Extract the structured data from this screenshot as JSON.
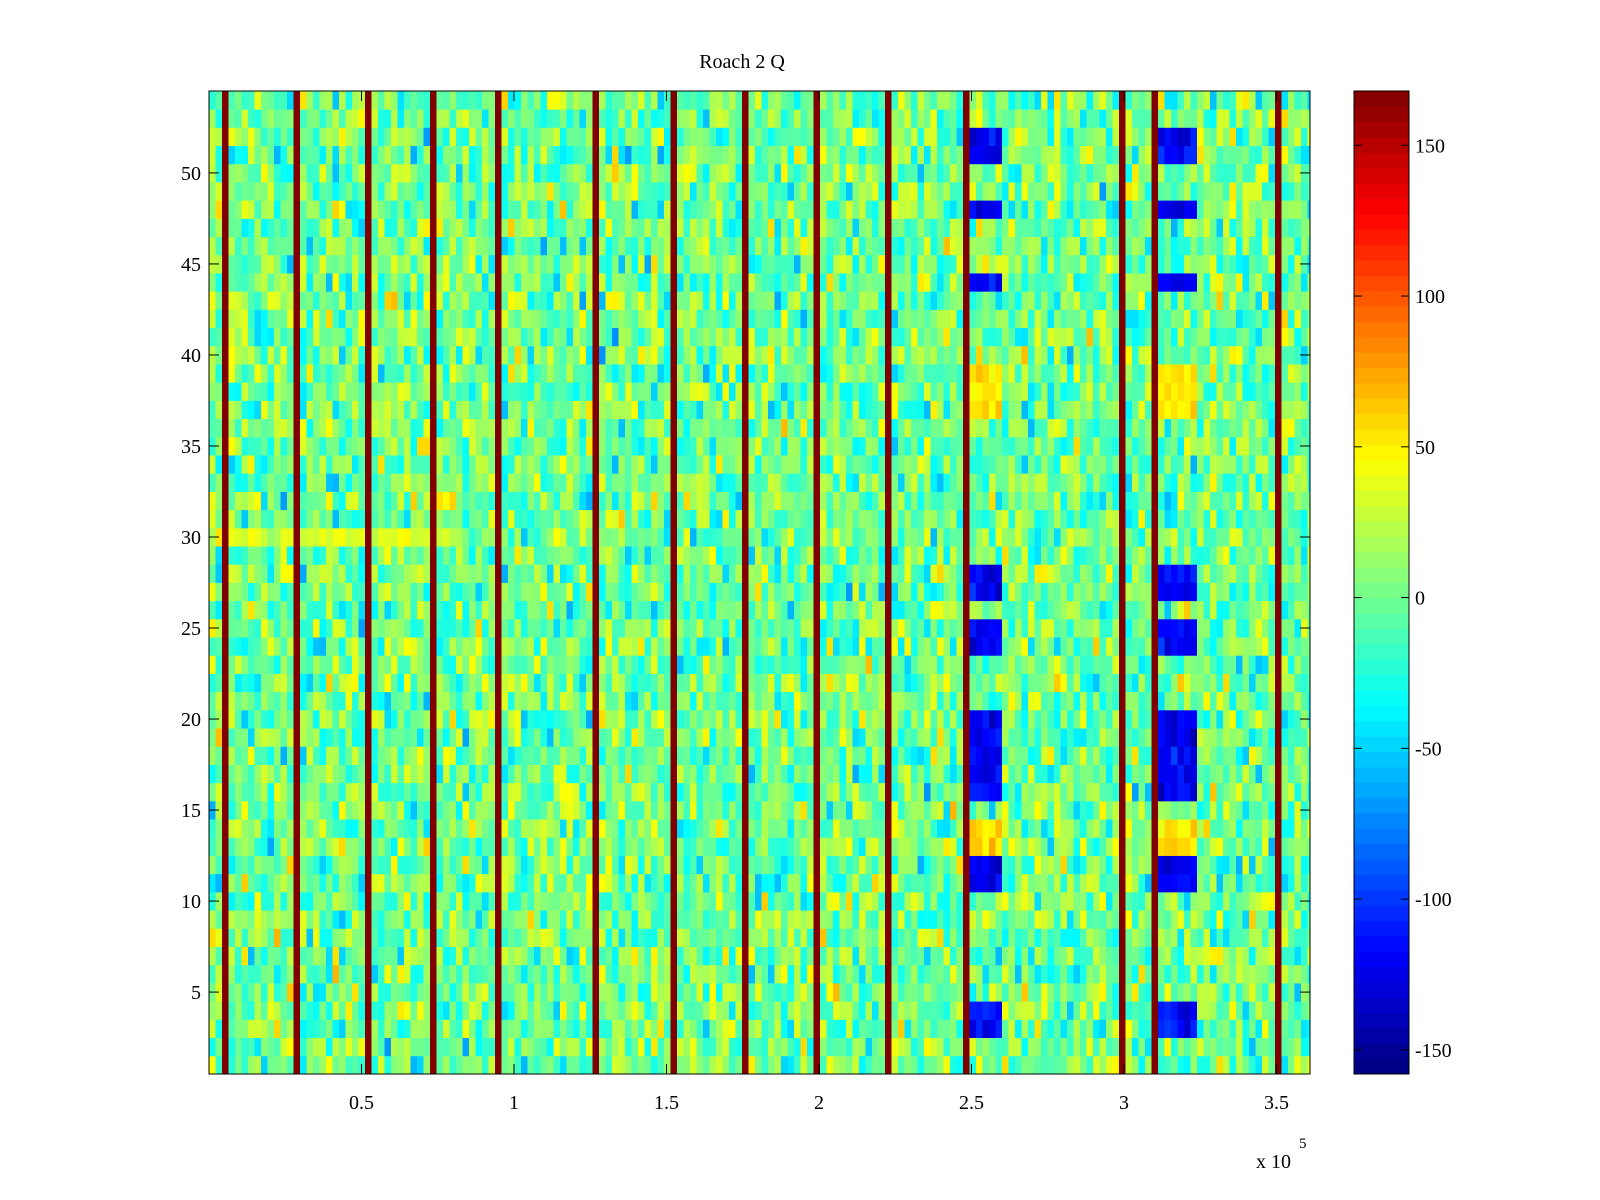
{
  "chart_data": {
    "type": "heatmap",
    "title": "Roach 2 Q",
    "xlabel": "",
    "ylabel": "",
    "x_exponent_label": "x 10",
    "x_exponent": "5",
    "xlim": [
      0,
      361000
    ],
    "ylim": [
      0.5,
      54.5
    ],
    "x_ticks": [
      50000,
      100000,
      150000,
      200000,
      250000,
      300000,
      350000
    ],
    "x_tick_labels": [
      "0.5",
      "1",
      "1.5",
      "2",
      "2.5",
      "3",
      "3.5"
    ],
    "y_ticks": [
      5,
      10,
      15,
      20,
      25,
      30,
      35,
      40,
      45,
      50
    ],
    "y_tick_labels": [
      "5",
      "10",
      "15",
      "20",
      "25",
      "30",
      "35",
      "40",
      "45",
      "50"
    ],
    "rows": 54,
    "colormap": "jet",
    "clim": [
      -158,
      168
    ],
    "colorbar_ticks": [
      150,
      100,
      50,
      0,
      -50,
      -100,
      -150
    ],
    "colorbar_tick_labels": [
      "150",
      "100",
      "50",
      "0",
      "-50",
      "-100",
      "-150"
    ],
    "baseline_value": 0,
    "noise_amplitude": 25,
    "hot_columns_x": [
      5000,
      29000,
      51500,
      74000,
      95500,
      125500,
      151000,
      174500,
      198000,
      221000,
      247000,
      299000,
      310000,
      348500
    ],
    "hot_column_value": 168,
    "artifact_bands": [
      {
        "x_range": [
          247000,
          257000
        ],
        "low_rows": [
          3,
          4,
          11,
          12,
          16,
          17,
          18,
          19,
          20,
          24,
          25,
          27,
          28,
          44,
          48,
          51,
          52
        ],
        "high_rows": [
          13,
          14,
          37,
          38,
          39
        ]
      },
      {
        "x_range": [
          311000,
          321000
        ],
        "low_rows": [
          3,
          4,
          11,
          12,
          16,
          17,
          18,
          19,
          20,
          24,
          25,
          27,
          28,
          44,
          48,
          51,
          52
        ],
        "high_rows": [
          13,
          14,
          37,
          38,
          39
        ]
      }
    ],
    "low_value": -120,
    "high_value": 55,
    "warm_row": 30,
    "warm_row_x_range": [
      0,
      80000
    ],
    "warm_row_value": 35
  }
}
